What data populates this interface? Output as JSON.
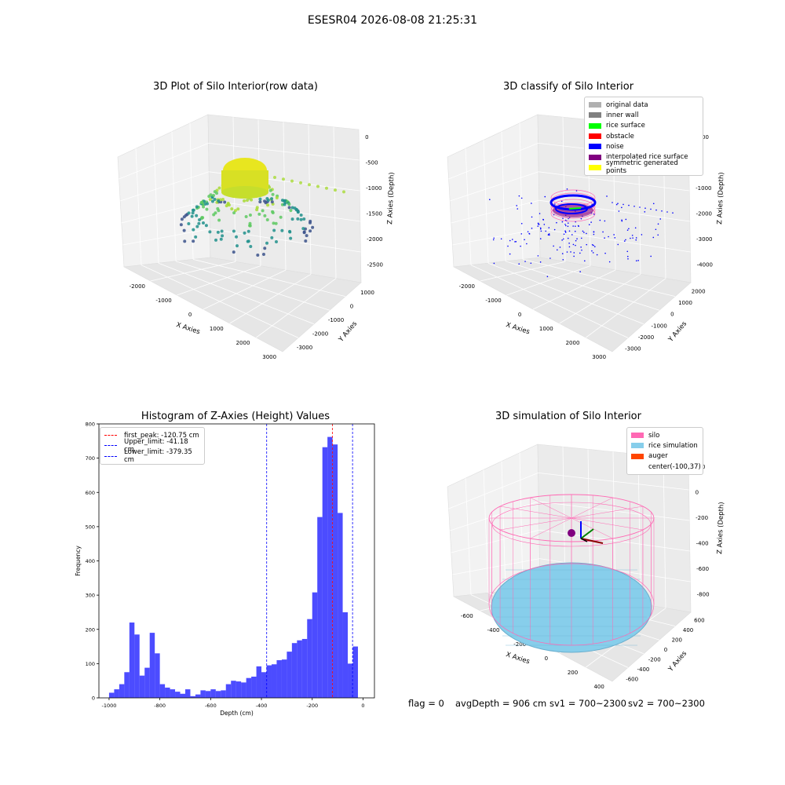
{
  "suptitle": "ESESR04 2026-08-08 21:25:31",
  "panels": {
    "raw": {
      "title": "3D Plot of Silo Interior(row data)",
      "xlabel": "X Axies",
      "ylabel": "Y Axies",
      "zlabel": "Z Axies (Depth)",
      "xticks": [
        "-2000",
        "-1000",
        "0",
        "1000",
        "2000",
        "3000"
      ],
      "yticks": [
        "1000",
        "0",
        "-1000",
        "-2000",
        "-3000"
      ],
      "zticks": [
        "0",
        "-500",
        "-1000",
        "-1500",
        "-2000",
        "-2500"
      ]
    },
    "classify": {
      "title": "3D classify of Silo Interior",
      "xlabel": "X Axies",
      "ylabel": "Y Axies",
      "zlabel": "Z Axies (Depth)",
      "xticks": [
        "-2000",
        "-1000",
        "0",
        "1000",
        "2000",
        "3000"
      ],
      "yticks": [
        "2000",
        "1000",
        "0",
        "-1000",
        "-2000",
        "-3000"
      ],
      "zticks": [
        "1000",
        "0",
        "-1000",
        "-2000",
        "-3000",
        "-4000"
      ],
      "legend": [
        {
          "label": "original data",
          "color": "#b0b0b0"
        },
        {
          "label": "inner wall",
          "color": "#808080"
        },
        {
          "label": "rice surface",
          "color": "#00ff00"
        },
        {
          "label": "obstacle",
          "color": "#ff0000"
        },
        {
          "label": "noise",
          "color": "#0000ff"
        },
        {
          "label": "interpolated rice surface",
          "color": "#800080"
        },
        {
          "label": "symmetric generated points",
          "color": "#ffff00"
        }
      ]
    },
    "simulation": {
      "title": "3D simulation of Silo Interior",
      "xlabel": "X Axies",
      "ylabel": "Y Axies",
      "zlabel": "Z Axies (Depth)",
      "xticks": [
        "-600",
        "-400",
        "-200",
        "0",
        "200",
        "400"
      ],
      "yticks": [
        "600",
        "400",
        "200",
        "0",
        "-200",
        "-400",
        "-600"
      ],
      "zticks": [
        "200",
        "0",
        "-200",
        "-400",
        "-600",
        "-800"
      ],
      "legend": [
        {
          "label": "silo",
          "color": "#ff69b4"
        },
        {
          "label": "rice simulation",
          "color": "#87ceeb"
        },
        {
          "label": "auger",
          "color": "#ff4500"
        },
        {
          "label": "center(-100,37)",
          "color": ""
        }
      ]
    }
  },
  "footer": {
    "flag": "flag = 0",
    "avg": "avgDepth = 906 cm",
    "sv1": "sv1 = 700~2300",
    "sv2": "sv2 = 700~2300"
  },
  "chart_data": {
    "type": "bar",
    "title": "Histogram of Z-Axies (Height) Values",
    "xlabel": "Depth (cm)",
    "ylabel": "Frequency",
    "xlim": [
      -1040,
      45
    ],
    "ylim": [
      0,
      800
    ],
    "xticks": [
      -1000,
      -800,
      -600,
      -400,
      -200,
      0
    ],
    "yticks": [
      0,
      100,
      200,
      300,
      400,
      500,
      600,
      700,
      800
    ],
    "bar_color": "#0000ff",
    "bin_edges_start": -1000,
    "bin_width": 20,
    "values": [
      15,
      25,
      40,
      75,
      220,
      185,
      65,
      88,
      190,
      130,
      40,
      30,
      25,
      18,
      12,
      25,
      5,
      10,
      22,
      20,
      25,
      20,
      22,
      40,
      50,
      48,
      45,
      58,
      62,
      92,
      75,
      95,
      98,
      110,
      112,
      135,
      160,
      168,
      172,
      230,
      308,
      528,
      732,
      762,
      740,
      540,
      250,
      100,
      150
    ],
    "lines": [
      {
        "name": "first_peak: -120.75 cm",
        "x": -120.75,
        "color": "#ff0000"
      },
      {
        "name": "Upper_limit: -41.18 cm",
        "x": -41.18,
        "color": "#0000ff"
      },
      {
        "name": "Lower_limit: -379.35 cm",
        "x": -379.35,
        "color": "#0000ff"
      }
    ]
  }
}
